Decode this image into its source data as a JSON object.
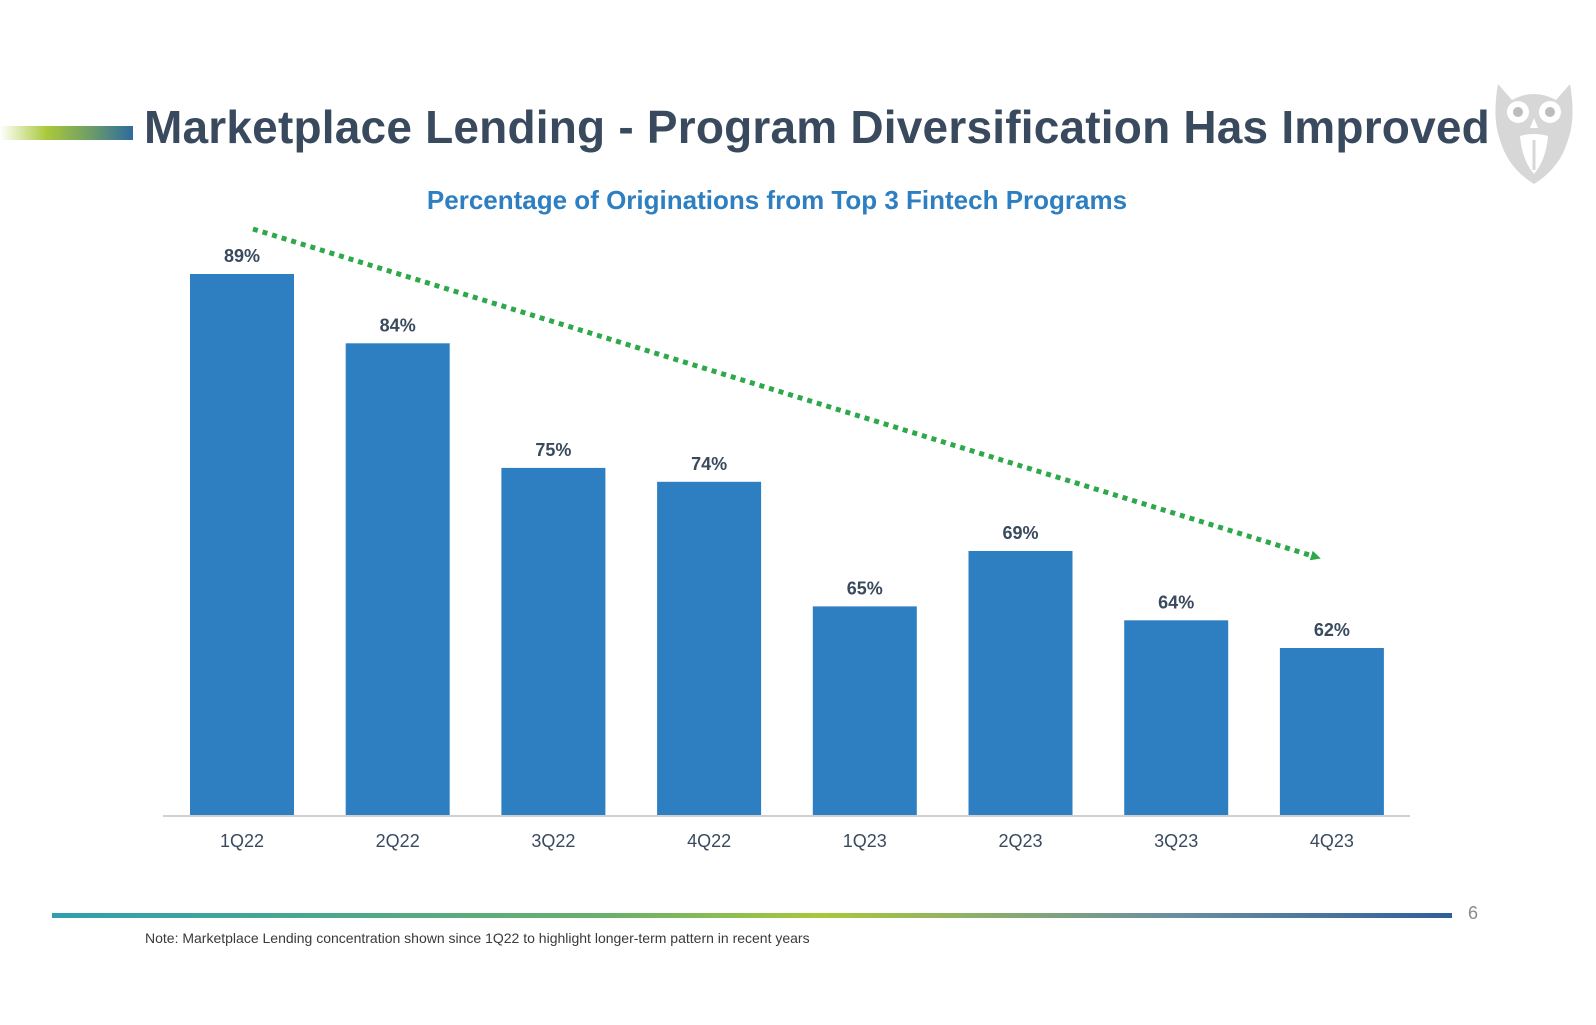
{
  "slide": {
    "title": "Marketplace Lending - Program Diversification Has Improved",
    "page_number": "6",
    "footnote": "Note: Marketplace Lending concentration shown since 1Q22 to highlight longer-term pattern in recent years",
    "logo_icon": "owl-logo-icon"
  },
  "colors": {
    "bar": "#2e7fc1",
    "title": "#3a4a5e",
    "chart_title": "#2e7fc1",
    "trend_arrow": "#2ea84a",
    "axis": "#d0d0d0"
  },
  "chart_data": {
    "type": "bar",
    "title": "Percentage of Originations from Top 3 Fintech Programs",
    "xlabel": "",
    "ylabel": "",
    "categories": [
      "1Q22",
      "2Q22",
      "3Q22",
      "4Q22",
      "1Q23",
      "2Q23",
      "3Q23",
      "4Q23"
    ],
    "values": [
      89,
      84,
      75,
      74,
      65,
      69,
      64,
      62
    ],
    "value_labels": [
      "89%",
      "84%",
      "75%",
      "74%",
      "65%",
      "69%",
      "64%",
      "62%"
    ],
    "unit": "%",
    "ylim": [
      50,
      90
    ],
    "grid": false,
    "legend": "none",
    "annotations": [
      {
        "type": "trend-arrow",
        "style": "dotted",
        "direction": "downward",
        "from_category": "1Q22",
        "to_category": "4Q23"
      }
    ]
  }
}
